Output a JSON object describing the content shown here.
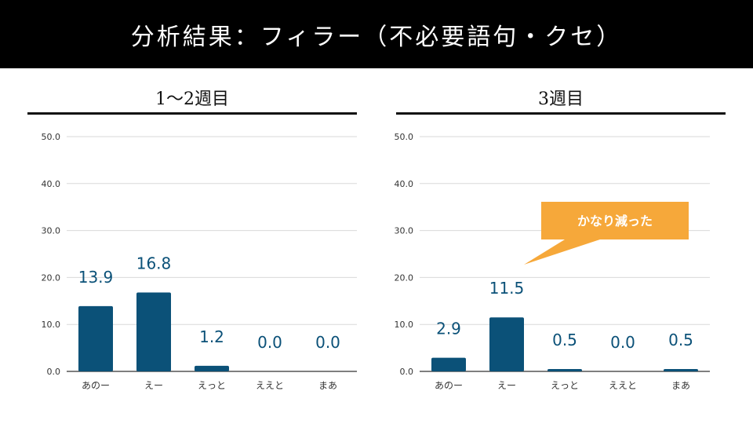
{
  "header": {
    "title": "分析結果：フィラー（不必要語句・クセ）"
  },
  "colors": {
    "bar": "#0b5178",
    "label": "#0b5178",
    "callout": "#f6a83a",
    "grid": "#d9d9d9",
    "axis": "#333333"
  },
  "chart_data": [
    {
      "type": "bar",
      "title": "1〜2週目",
      "categories": [
        "あのー",
        "えー",
        "えっと",
        "ええと",
        "まあ"
      ],
      "values": [
        13.9,
        16.8,
        1.2,
        0.0,
        0.0
      ],
      "value_labels": [
        "13.9",
        "16.8",
        "1.2",
        "0.0",
        "0.0"
      ],
      "yticks": [
        "0.0",
        "10.0",
        "20.0",
        "30.0",
        "40.0",
        "50.0"
      ],
      "ylim": [
        0,
        50
      ],
      "grid": true,
      "xlabel": "",
      "ylabel": ""
    },
    {
      "type": "bar",
      "title": "3週目",
      "categories": [
        "あのー",
        "えー",
        "えっと",
        "ええと",
        "まあ"
      ],
      "values": [
        2.9,
        11.5,
        0.5,
        0.0,
        0.5
      ],
      "value_labels": [
        "2.9",
        "11.5",
        "0.5",
        "0.0",
        "0.5"
      ],
      "yticks": [
        "0.0",
        "10.0",
        "20.0",
        "30.0",
        "40.0",
        "50.0"
      ],
      "ylim": [
        0,
        50
      ],
      "grid": true,
      "xlabel": "",
      "ylabel": "",
      "annotation": "かなり減った"
    }
  ]
}
